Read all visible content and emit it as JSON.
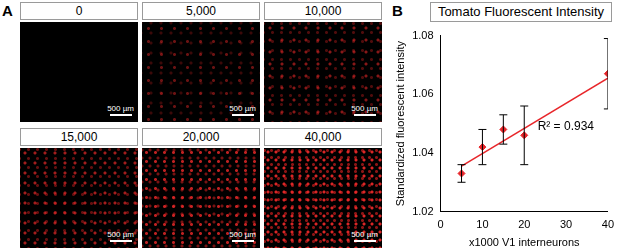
{
  "panel_labels": [
    "A",
    "B"
  ],
  "images": [
    {
      "title": "0",
      "scale_bar": "500 µm"
    },
    {
      "title": "5,000",
      "scale_bar": "500 µm"
    },
    {
      "title": "10,000",
      "scale_bar": "500 µm"
    },
    {
      "title": "15,000",
      "scale_bar": "500 µm"
    },
    {
      "title": "20,000",
      "scale_bar": "500 µm"
    },
    {
      "title": "40,000",
      "scale_bar": "500 µm"
    }
  ],
  "chart_data": {
    "type": "scatter",
    "title": "Tomato Fluorescent Intensity",
    "x_label": "x1000 V1 interneurons",
    "y_label": "Standardized fluorescent intensity",
    "xlim": [
      0,
      40
    ],
    "xticks": [
      0,
      10,
      20,
      30,
      40
    ],
    "ylim": [
      1.02,
      1.08
    ],
    "yticks": [
      1.02,
      1.04,
      1.06,
      1.08
    ],
    "grid": false,
    "annotations": [
      {
        "text": "R² = 0.934"
      }
    ],
    "series": [
      {
        "type": "scatter",
        "color": "#e8262a",
        "marker": "diamond",
        "x": [
          5,
          10,
          15,
          20,
          40
        ],
        "values": [
          1.033,
          1.042,
          1.048,
          1.046,
          1.067
        ],
        "error": [
          0.003,
          0.006,
          0.005,
          0.01,
          0.012
        ]
      },
      {
        "type": "line",
        "color": "#e8262a",
        "line_style": "solid",
        "x": [
          5,
          40
        ],
        "values": [
          1.0355,
          1.0655
        ]
      }
    ]
  }
}
